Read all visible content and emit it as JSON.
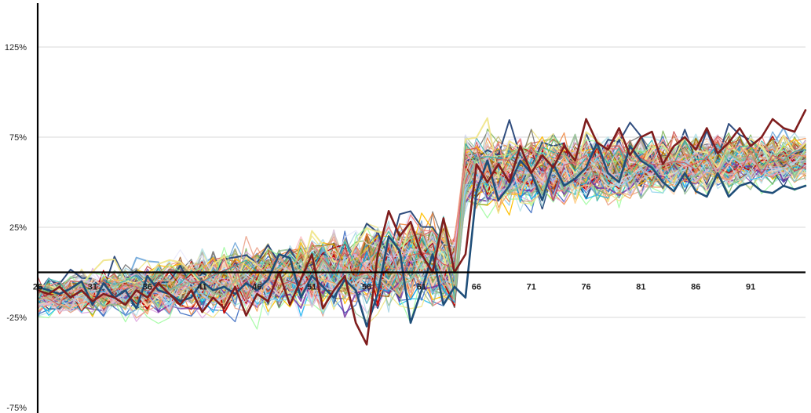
{
  "chart_data": {
    "type": "line",
    "title": "",
    "xlabel": "",
    "ylabel": "",
    "xlim": [
      26,
      96
    ],
    "ylim": [
      -75,
      145
    ],
    "grid": true,
    "legend": "none",
    "y_ticks": [
      {
        "value": 125,
        "label": "125%"
      },
      {
        "value": 75,
        "label": "75%"
      },
      {
        "value": 25,
        "label": "25%"
      },
      {
        "value": -25,
        "label": "-25%"
      },
      {
        "value": -75,
        "label": "-75%"
      }
    ],
    "x_ticks": [
      {
        "value": 26,
        "label": "26"
      },
      {
        "value": 31,
        "label": "31"
      },
      {
        "value": 36,
        "label": "36"
      },
      {
        "value": 41,
        "label": "41"
      },
      {
        "value": 46,
        "label": "46"
      },
      {
        "value": 51,
        "label": "51"
      },
      {
        "value": 56,
        "label": "56"
      },
      {
        "value": 61,
        "label": "61"
      },
      {
        "value": 66,
        "label": "66"
      },
      {
        "value": 71,
        "label": "71"
      },
      {
        "value": 76,
        "label": "76"
      },
      {
        "value": 81,
        "label": "81"
      },
      {
        "value": 86,
        "label": "86"
      },
      {
        "value": 91,
        "label": "91"
      }
    ],
    "background_series_count": 120,
    "background_colors": [
      "#4472c4",
      "#ed7d31",
      "#a5a5a5",
      "#ffc000",
      "#5b9bd5",
      "#70ad47",
      "#264478",
      "#9e480e",
      "#636363",
      "#997300",
      "#7030a0",
      "#00b0f0",
      "#c00000",
      "#ffb6c1",
      "#ffdab9",
      "#add8e6",
      "#e6e6fa",
      "#98fb98",
      "#f0e68c",
      "#dda0dd",
      "#b0e0e6",
      "#f4a460",
      "#d8bfd8",
      "#87ceeb",
      "#f08080",
      "#20b2aa",
      "#8fbc8f",
      "#cd5c5c",
      "#bdb76b",
      "#e9967a"
    ],
    "series": [
      {
        "color": "#1f4e79",
        "x": [
          26,
          27,
          28,
          29,
          30,
          31,
          32,
          33,
          34,
          35,
          36,
          37,
          38,
          39,
          40,
          41,
          42,
          43,
          44,
          45,
          46,
          47,
          48,
          49,
          50,
          51,
          52,
          53,
          54,
          55,
          56,
          57,
          58,
          59,
          60,
          61,
          62,
          63,
          64,
          65,
          66,
          67,
          68,
          69,
          70,
          71,
          72,
          73,
          74,
          75,
          76,
          77,
          78,
          79,
          80,
          81,
          82,
          83,
          84,
          85,
          86,
          87,
          88,
          89,
          90,
          91,
          92,
          93,
          94,
          95,
          96
        ],
        "y": [
          -8,
          -10,
          -12,
          -9,
          -5,
          -18,
          -6,
          -14,
          -10,
          -20,
          -2,
          -10,
          -12,
          -16,
          -14,
          -5,
          -10,
          -8,
          -12,
          -6,
          -10,
          -4,
          10,
          8,
          -14,
          -2,
          -8,
          -14,
          -4,
          -10,
          -30,
          -12,
          20,
          12,
          -28,
          -10,
          10,
          -18,
          -8,
          -14,
          45,
          62,
          40,
          48,
          62,
          55,
          40,
          60,
          48,
          52,
          58,
          72,
          55,
          50,
          70,
          62,
          58,
          50,
          45,
          55,
          45,
          42,
          55,
          42,
          48,
          50,
          45,
          44,
          48,
          46,
          48
        ]
      },
      {
        "color": "#7f1d1d",
        "x": [
          26,
          27,
          28,
          29,
          30,
          31,
          32,
          33,
          34,
          35,
          36,
          37,
          38,
          39,
          40,
          41,
          42,
          43,
          44,
          45,
          46,
          47,
          48,
          49,
          50,
          51,
          52,
          53,
          54,
          55,
          56,
          57,
          58,
          59,
          60,
          61,
          62,
          63,
          64,
          65,
          66,
          67,
          68,
          69,
          70,
          71,
          72,
          73,
          74,
          75,
          76,
          77,
          78,
          79,
          80,
          81,
          82,
          83,
          84,
          85,
          86,
          87,
          88,
          89,
          90,
          91,
          92,
          93,
          94,
          95,
          96
        ],
        "y": [
          -10,
          -12,
          -8,
          -14,
          -10,
          -16,
          -12,
          -14,
          -18,
          -10,
          -14,
          -6,
          -12,
          -18,
          -10,
          -22,
          -14,
          -20,
          -8,
          -24,
          -12,
          -16,
          0,
          -18,
          -4,
          10,
          -20,
          -10,
          -2,
          -28,
          -40,
          10,
          34,
          20,
          28,
          10,
          0,
          30,
          0,
          10,
          60,
          50,
          60,
          50,
          70,
          55,
          65,
          58,
          70,
          62,
          85,
          72,
          68,
          80,
          65,
          75,
          78,
          60,
          70,
          75,
          68,
          80,
          66,
          72,
          80,
          70,
          75,
          85,
          80,
          78,
          90
        ]
      }
    ]
  }
}
